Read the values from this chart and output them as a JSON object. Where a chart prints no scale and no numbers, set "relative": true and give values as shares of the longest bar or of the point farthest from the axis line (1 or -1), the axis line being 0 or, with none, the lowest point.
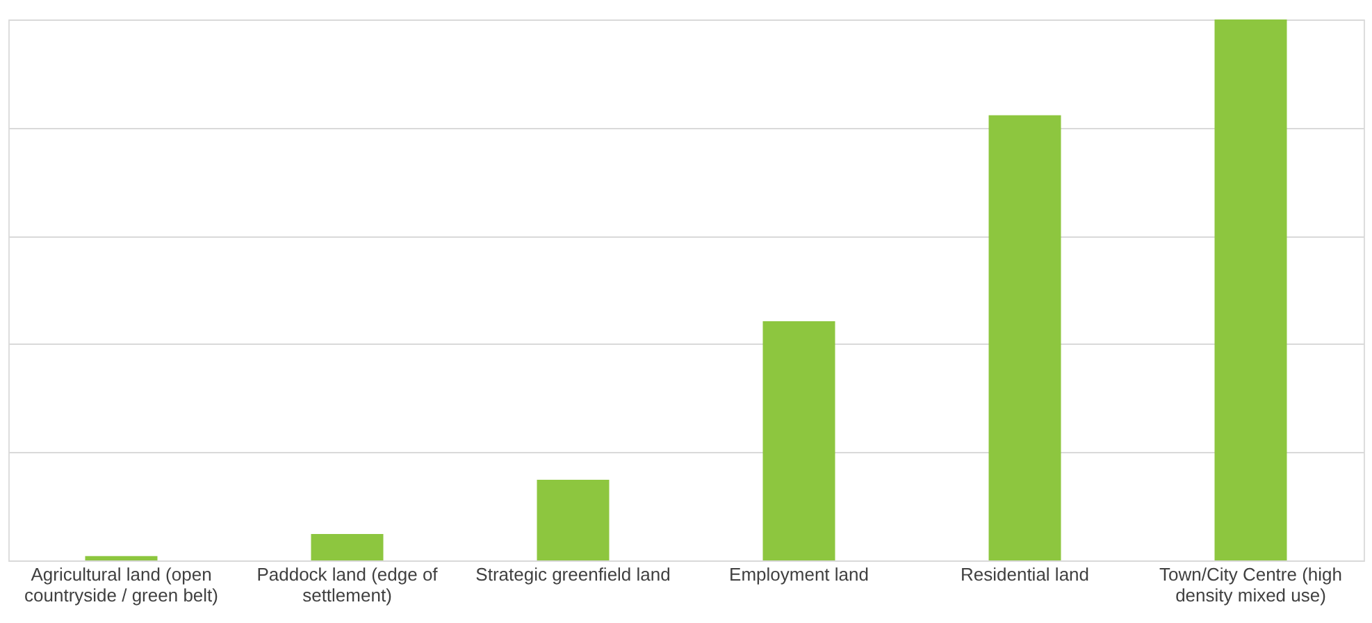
{
  "chart_data": {
    "type": "bar",
    "relative": true,
    "categories": [
      "Agricultural land (open countryside / green belt)",
      "Paddock land (edge of settlement)",
      "Strategic greenfield land",
      "Employment land",
      "Residential land",
      "Town/City Centre (high density mixed use)"
    ],
    "values": [
      0.008,
      0.049,
      0.149,
      0.442,
      0.823,
      1
    ],
    "color": "#8dc63f",
    "grid": "y"
  }
}
